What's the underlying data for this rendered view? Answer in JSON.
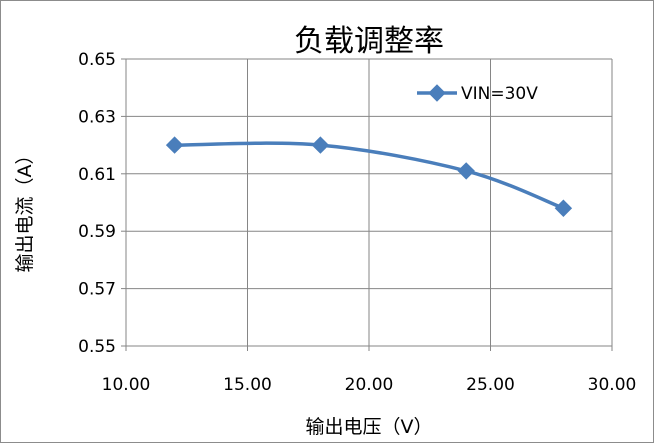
{
  "chart_data": {
    "type": "line",
    "title": "负载调整率",
    "xlabel": "输出电压（V）",
    "ylabel": "输出电流（A）",
    "xlim": [
      10,
      30
    ],
    "ylim": [
      0.55,
      0.65
    ],
    "x_ticks": [
      "10.00",
      "15.00",
      "20.00",
      "25.00",
      "30.00"
    ],
    "y_ticks": [
      "0.55",
      "0.57",
      "0.59",
      "0.61",
      "0.63",
      "0.65"
    ],
    "grid": true,
    "legend_position": "top-right",
    "series": [
      {
        "name": "VIN=30V",
        "color": "#4A7EBB",
        "marker": "diamond",
        "smooth": true,
        "x": [
          12,
          18,
          24,
          28
        ],
        "y": [
          0.62,
          0.62,
          0.611,
          0.598
        ]
      }
    ]
  }
}
